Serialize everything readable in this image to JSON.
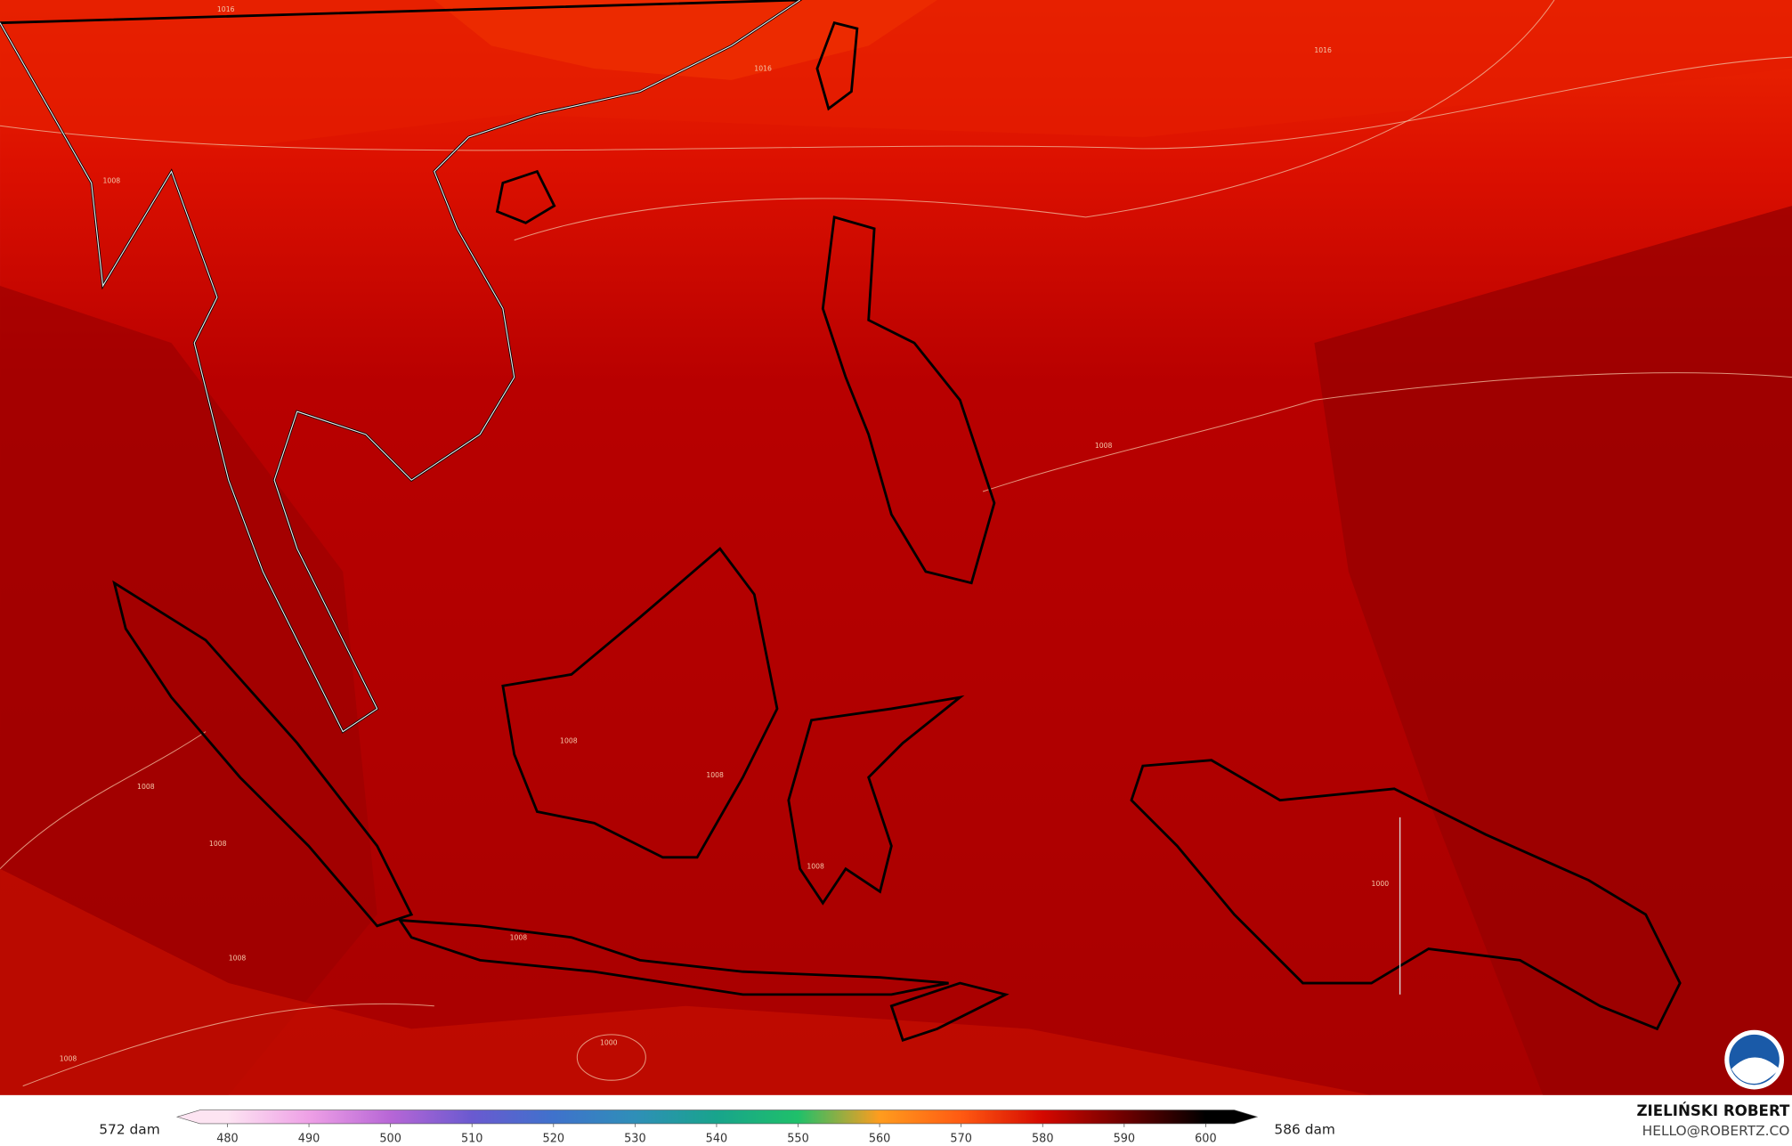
{
  "map": {
    "isobar_labels": [
      "1016",
      "1016",
      "1016",
      "1008",
      "1008",
      "1008",
      "1008",
      "1008",
      "1008",
      "1008",
      "1008",
      "1008",
      "1008",
      "1000"
    ],
    "colorbar": {
      "min_label": "572 dam",
      "max_label": "586 dam",
      "ticks": [
        480,
        490,
        500,
        510,
        520,
        530,
        540,
        550,
        560,
        570,
        580,
        590,
        600
      ],
      "colors": [
        "#fde4f2",
        "#eea0e6",
        "#b766d6",
        "#6a5ad0",
        "#3f72cc",
        "#2f8fb8",
        "#18a48c",
        "#1fc06a",
        "#ff9c1e",
        "#ff5a12",
        "#d40800",
        "#6e0000",
        "#000000"
      ]
    },
    "credit": {
      "author": "ZIELIŃSKI ROBERT",
      "email": "HELLO@ROBERTZ.CO"
    }
  }
}
